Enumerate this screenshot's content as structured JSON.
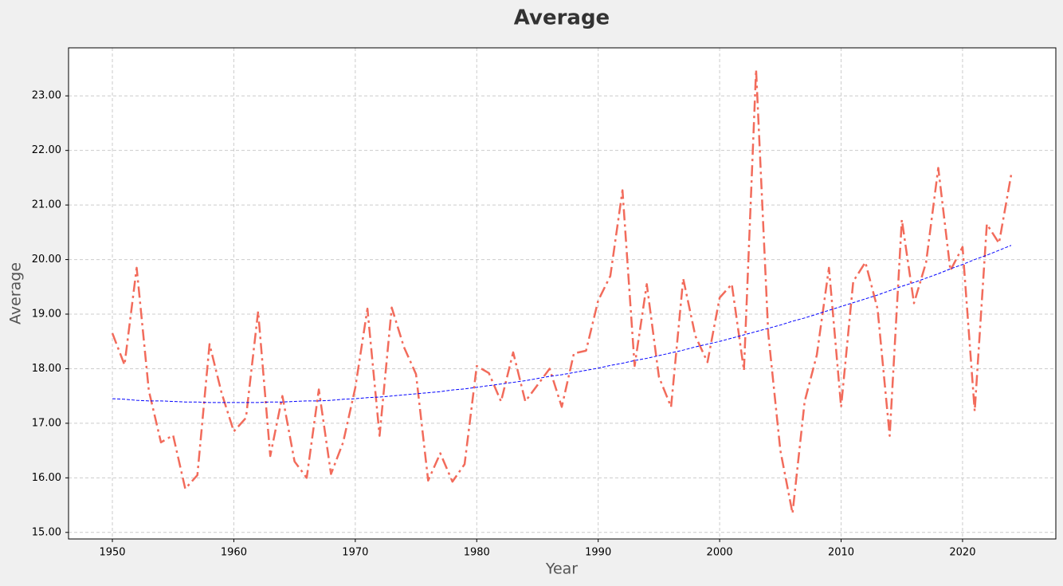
{
  "chart_data": {
    "type": "line",
    "title": "Average",
    "x_label": "Year",
    "y_label": "Average",
    "x": [
      1950,
      1951,
      1952,
      1953,
      1954,
      1955,
      1956,
      1957,
      1958,
      1959,
      1960,
      1961,
      1962,
      1963,
      1964,
      1965,
      1966,
      1967,
      1968,
      1969,
      1970,
      1971,
      1972,
      1973,
      1974,
      1975,
      1976,
      1977,
      1978,
      1979,
      1980,
      1981,
      1982,
      1983,
      1984,
      1985,
      1986,
      1987,
      1988,
      1989,
      1990,
      1991,
      1992,
      1993,
      1994,
      1995,
      1996,
      1997,
      1998,
      1999,
      2000,
      2001,
      2002,
      2003,
      2004,
      2005,
      2006,
      2007,
      2008,
      2009,
      2010,
      2011,
      2012,
      2013,
      2014,
      2015,
      2016,
      2017,
      2018,
      2019,
      2020,
      2021,
      2022,
      2023,
      2024
    ],
    "series": [
      {
        "color": "#f26b5b",
        "style": "dashdot",
        "width": 2.5,
        "values": [
          18.65,
          18.07,
          19.85,
          17.6,
          16.65,
          16.78,
          15.8,
          16.05,
          18.45,
          17.55,
          16.85,
          17.1,
          19.05,
          16.4,
          17.5,
          16.3,
          16.0,
          17.62,
          16.07,
          16.65,
          17.65,
          19.1,
          16.77,
          19.12,
          18.4,
          17.9,
          15.95,
          16.45,
          15.93,
          16.25,
          18.05,
          17.92,
          17.4,
          18.3,
          17.4,
          17.7,
          18.0,
          17.3,
          18.28,
          18.33,
          19.25,
          19.7,
          21.27,
          18.05,
          19.55,
          17.85,
          17.3,
          19.65,
          18.6,
          18.12,
          19.3,
          19.55,
          17.97,
          23.48,
          18.65,
          16.5,
          15.35,
          17.4,
          18.25,
          19.85,
          17.3,
          19.6,
          19.95,
          19.1,
          16.77,
          20.73,
          19.2,
          19.95,
          21.68,
          19.8,
          20.23,
          17.22,
          20.65,
          20.3,
          21.55
        ]
      },
      {
        "color": "#0000ff",
        "style": "dashed",
        "width": 1,
        "values": [
          17.45,
          17.44,
          17.42,
          17.41,
          17.41,
          17.4,
          17.39,
          17.39,
          17.38,
          17.38,
          17.38,
          17.38,
          17.38,
          17.39,
          17.39,
          17.4,
          17.41,
          17.41,
          17.42,
          17.44,
          17.45,
          17.47,
          17.48,
          17.5,
          17.52,
          17.54,
          17.56,
          17.58,
          17.61,
          17.63,
          17.66,
          17.69,
          17.72,
          17.75,
          17.78,
          17.82,
          17.86,
          17.89,
          17.93,
          17.97,
          18.01,
          18.06,
          18.1,
          18.15,
          18.19,
          18.24,
          18.29,
          18.34,
          18.4,
          18.45,
          18.5,
          18.56,
          18.62,
          18.68,
          18.74,
          18.8,
          18.87,
          18.93,
          19.0,
          19.07,
          19.14,
          19.21,
          19.28,
          19.35,
          19.43,
          19.51,
          19.58,
          19.66,
          19.74,
          19.83,
          19.91,
          20.0,
          20.08,
          20.17,
          20.26
        ]
      }
    ],
    "xlim": [
      1946.39,
      2027.68
    ],
    "xticks": [
      1950,
      1960,
      1970,
      1980,
      1990,
      2000,
      2010,
      2020
    ],
    "ylim": [
      14.88,
      23.88
    ],
    "yticks": [
      {
        "value": 15,
        "label": "15.00"
      },
      {
        "value": 16,
        "label": "16.00"
      },
      {
        "value": 17,
        "label": "17.00"
      },
      {
        "value": 18,
        "label": "18.00"
      },
      {
        "value": 19,
        "label": "19.00"
      },
      {
        "value": 20,
        "label": "20.00"
      },
      {
        "value": 21,
        "label": "21.00"
      },
      {
        "value": 22,
        "label": "22.00"
      },
      {
        "value": 23,
        "label": "23.00"
      }
    ],
    "grid": true
  }
}
